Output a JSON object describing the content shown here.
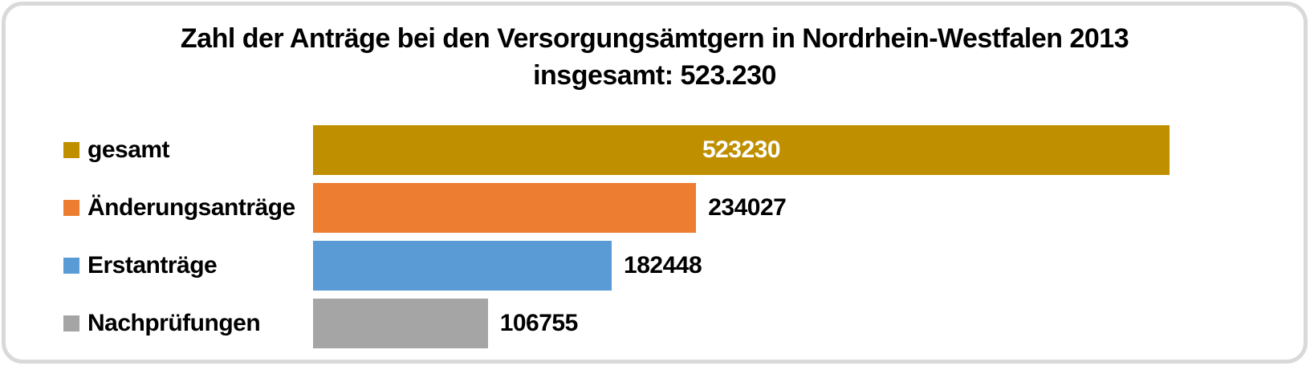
{
  "frame": {
    "border_color": "#D9D9D9",
    "background": "#FFFFFF"
  },
  "chart_data": {
    "type": "bar",
    "orientation": "horizontal",
    "title_line1": "Zahl der Anträge bei den Versorgungsämtgern in Nordrhein-Westfalen 2013",
    "title_line2": "insgesamt: 523.230",
    "categories": [
      "gesamt",
      "Änderungsanträge",
      "Erstanträge",
      "Nachprüfungen"
    ],
    "values": [
      523230,
      234027,
      182448,
      106755
    ],
    "xlim": [
      0,
      523230
    ],
    "grid": false,
    "legend_position": "category-labels-left",
    "value_labels_shown": true,
    "bars": [
      {
        "label": "gesamt",
        "value": 523230,
        "value_label": "523230",
        "color": "#BF8F00",
        "value_label_position": "inside-center",
        "value_label_color": "#FFFFFF"
      },
      {
        "label": "Änderungsanträge",
        "value": 234027,
        "value_label": "234027",
        "color": "#ED7D31",
        "value_label_position": "outside-right",
        "value_label_color": "#000000"
      },
      {
        "label": "Erstanträge",
        "value": 182448,
        "value_label": "182448",
        "color": "#5B9BD5",
        "value_label_position": "outside-right",
        "value_label_color": "#000000"
      },
      {
        "label": "Nachprüfungen",
        "value": 106755,
        "value_label": "106755",
        "color": "#A5A5A5",
        "value_label_position": "outside-right",
        "value_label_color": "#000000"
      }
    ]
  }
}
